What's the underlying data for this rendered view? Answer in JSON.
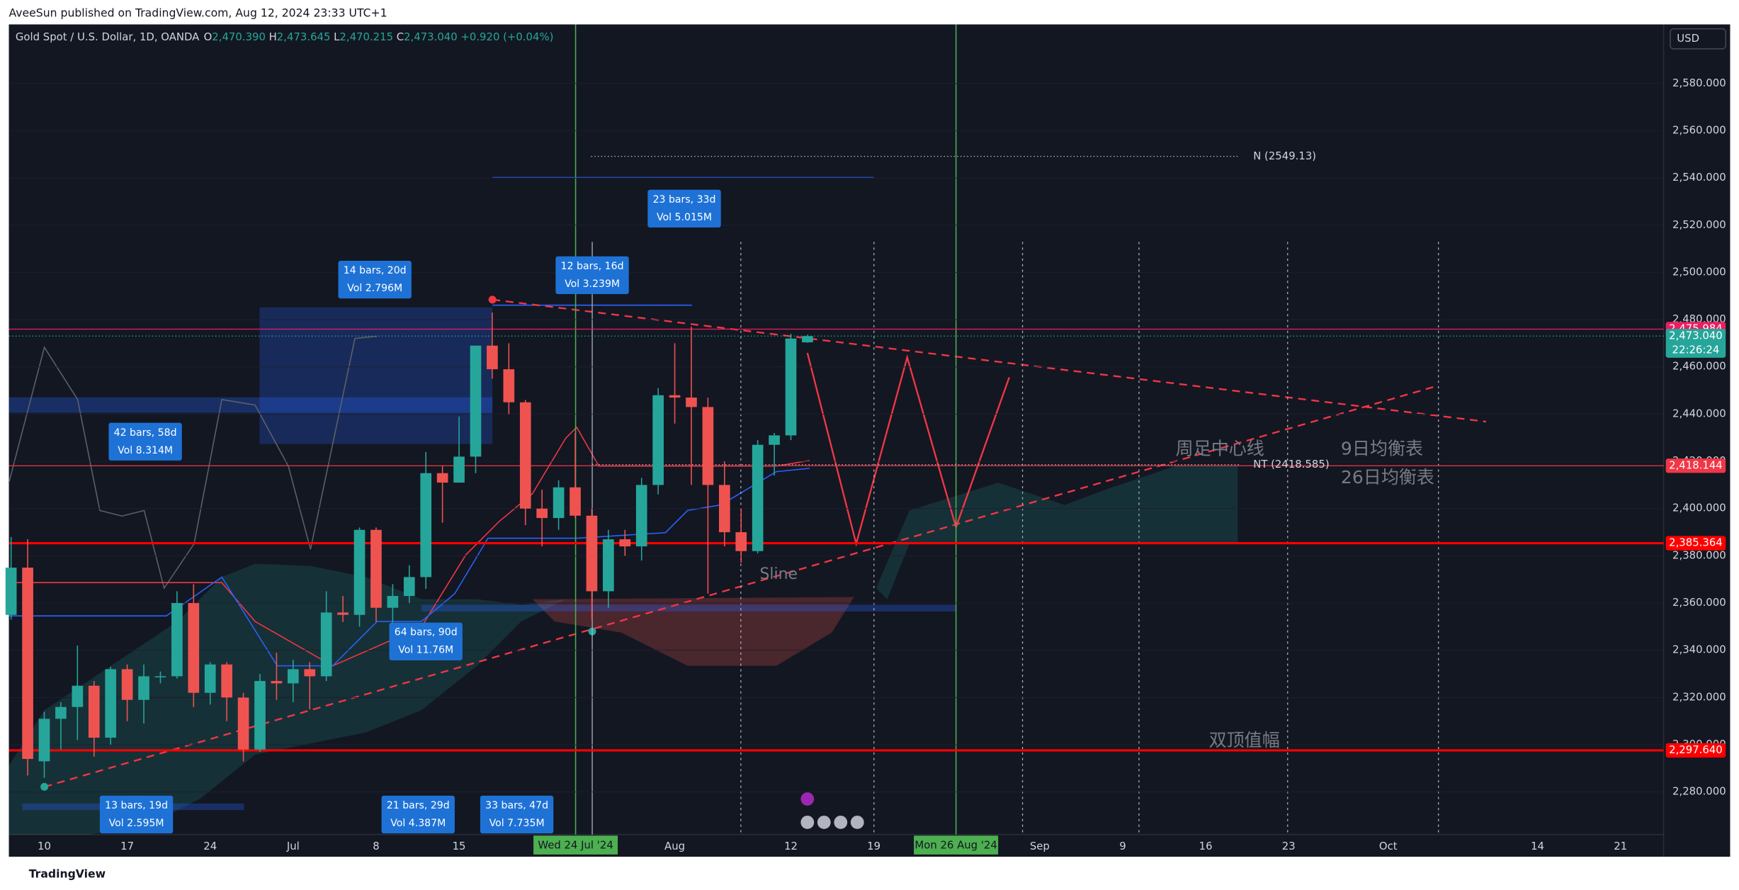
{
  "header": {
    "publisher": "AveeSun published on TradingView.com, Aug 12, 2024 23:33 UTC+1",
    "footer_logo": "TradingView"
  },
  "chart_data": {
    "type": "candlestick",
    "title": "Gold Spot / U.S. Dollar, 1D, OANDA",
    "legend": [
      {
        "key": "O",
        "text": "2,470.390"
      },
      {
        "key": "H",
        "text": "2,473.645"
      },
      {
        "key": "L",
        "text": "2,470.215"
      },
      {
        "key": "C",
        "text": "2,473.040"
      }
    ],
    "change": "+0.920 (+0.04%)",
    "currency": "USD",
    "categories": [
      null,
      null,
      "10",
      null,
      null,
      null,
      null,
      "17",
      null,
      null,
      null,
      null,
      "24",
      null,
      null,
      null,
      null,
      "Jul",
      null,
      null,
      null,
      null,
      "8",
      null,
      null,
      null,
      null,
      "15",
      null,
      null,
      null,
      null,
      null,
      null,
      null,
      null,
      null,
      null,
      null,
      null,
      "Aug",
      null,
      null,
      null,
      null,
      null,
      null,
      "12",
      null,
      null,
      null,
      null,
      "19",
      null,
      null,
      null,
      null,
      null,
      null,
      null,
      null,
      null,
      "Sep",
      null,
      null,
      null,
      null,
      "9",
      null,
      null,
      null,
      null,
      "16",
      null,
      null,
      null,
      null,
      "23",
      null,
      null,
      null,
      null,
      null,
      "Oct",
      null,
      null,
      null,
      null,
      null,
      null,
      null,
      null,
      "14",
      null,
      null,
      null,
      null,
      "21",
      null,
      null
    ],
    "series": [
      {
        "up_color": "#26a69a",
        "down_color": "#ef5350",
        "values": [
          [
            2355,
            2388,
            2353,
            2375
          ],
          [
            2375,
            2387,
            2287,
            2294
          ],
          [
            2293,
            2314,
            2286,
            2311
          ],
          [
            2311,
            2318,
            2298,
            2316
          ],
          [
            2316,
            2342,
            2302,
            2325
          ],
          [
            2325,
            2327,
            2295,
            2303
          ],
          [
            2303,
            2333,
            2300,
            2332
          ],
          [
            2332,
            2334,
            2310,
            2319
          ],
          [
            2319,
            2334,
            2309,
            2329
          ],
          [
            2329,
            2331,
            2326,
            2329
          ],
          [
            2329,
            2365,
            2328,
            2360
          ],
          [
            2360,
            2368,
            2316,
            2322
          ],
          [
            2322,
            2335,
            2317,
            2334
          ],
          [
            2334,
            2335,
            2310,
            2320
          ],
          [
            2320,
            2322,
            2293,
            2298
          ],
          [
            2298,
            2330,
            2297,
            2327
          ],
          [
            2327,
            2339,
            2319,
            2326
          ],
          [
            2326,
            2336,
            2318,
            2332
          ],
          [
            2332,
            2335,
            2315,
            2329
          ],
          [
            2329,
            2365,
            2327,
            2356
          ],
          [
            2356,
            2363,
            2352,
            2355
          ],
          [
            2355,
            2392,
            2350,
            2391
          ],
          [
            2391,
            2392,
            2352,
            2358
          ],
          [
            2358,
            2368,
            2351,
            2363
          ],
          [
            2363,
            2376,
            2360,
            2371
          ],
          [
            2371,
            2424,
            2366,
            2415
          ],
          [
            2415,
            2418,
            2394,
            2411
          ],
          [
            2411,
            2439,
            2411,
            2422
          ],
          [
            2422,
            2469,
            2415,
            2469
          ],
          [
            2469,
            2483,
            2455,
            2459
          ],
          [
            2459,
            2470,
            2440,
            2445
          ],
          [
            2445,
            2446,
            2393,
            2400
          ],
          [
            2400,
            2408,
            2384,
            2396
          ],
          [
            2396,
            2412,
            2391,
            2409
          ],
          [
            2409,
            2432,
            2396,
            2397
          ],
          [
            2397,
            2400,
            2353,
            2365
          ],
          [
            2365,
            2391,
            2358,
            2387
          ],
          [
            2387,
            2391,
            2380,
            2384
          ],
          [
            2384,
            2413,
            2378,
            2410
          ],
          [
            2410,
            2451,
            2406,
            2448
          ],
          [
            2448,
            2470,
            2436,
            2447
          ],
          [
            2447,
            2477,
            2410,
            2443
          ],
          [
            2443,
            2447,
            2364,
            2410
          ],
          [
            2410,
            2420,
            2384,
            2390
          ],
          [
            2390,
            2400,
            2377,
            2382
          ],
          [
            2382,
            2429,
            2381,
            2427
          ],
          [
            2427,
            2432,
            2414,
            2431
          ],
          [
            2431,
            2474,
            2429,
            2472
          ],
          [
            2470.39,
            2473.645,
            2470.215,
            2473.04
          ],
          null,
          null,
          null,
          null,
          null,
          null,
          null,
          null,
          null,
          null,
          null,
          null,
          null,
          null,
          null,
          null,
          null,
          null,
          null,
          null,
          null,
          null,
          null,
          null,
          null,
          null,
          null,
          null,
          null,
          null,
          null,
          null,
          null,
          null,
          null,
          null,
          null,
          null,
          null,
          null,
          null,
          null,
          null,
          null,
          null,
          null,
          null,
          null,
          null,
          null,
          null
        ]
      }
    ],
    "ylim": [
      2262,
      2605
    ],
    "yticks": [
      {
        "value": 2280,
        "label": "2,280.000"
      },
      {
        "value": 2300,
        "label": "2,300.000"
      },
      {
        "value": 2320,
        "label": "2,320.000"
      },
      {
        "value": 2340,
        "label": "2,340.000"
      },
      {
        "value": 2360,
        "label": "2,360.000"
      },
      {
        "value": 2380,
        "label": "2,380.000"
      },
      {
        "value": 2400,
        "label": "2,400.000"
      },
      {
        "value": 2420,
        "label": "2,420.000"
      },
      {
        "value": 2440,
        "label": "2,440.000"
      },
      {
        "value": 2460,
        "label": "2,460.000"
      },
      {
        "value": 2480,
        "label": "2,480.000"
      },
      {
        "value": 2500,
        "label": "2,500.000"
      },
      {
        "value": 2520,
        "label": "2,520.000"
      },
      {
        "value": 2540,
        "label": "2,540.000"
      },
      {
        "value": 2560,
        "label": "2,560.000"
      },
      {
        "value": 2580,
        "label": "2,580.000"
      }
    ],
    "price_labels": [
      {
        "value": 2475.984,
        "label": "2,475.984",
        "color": "#e91e63"
      },
      {
        "value": 2473.04,
        "label": "2,473.040",
        "color": "#26a69a",
        "countdown": "22:26:24"
      },
      {
        "value": 2418.144,
        "label": "2,418.144",
        "color": "#f23645"
      },
      {
        "value": 2385.364,
        "label": "2,385.364",
        "color": "#ff0000"
      },
      {
        "value": 2297.64,
        "label": "2,297.640",
        "color": "#ff0000"
      }
    ],
    "levels": [
      {
        "value": 2549.13,
        "label": "N (2549.13)"
      },
      {
        "value": 2418.585,
        "label": "NT (2418.585)"
      }
    ],
    "date_markers": [
      "Wed 24 Jul '24",
      "Mon 26 Aug '24"
    ],
    "annotations": [
      "周足中心线",
      "9日均衡表",
      "26日均衡表",
      "Sline",
      "双顶值幅"
    ],
    "measures": [
      {
        "bars": "14 bars, 20d",
        "vol": "Vol 2.796M"
      },
      {
        "bars": "12 bars, 16d",
        "vol": "Vol 3.239M"
      },
      {
        "bars": "23 bars, 33d",
        "vol": "Vol 5.015M"
      },
      {
        "bars": "42 bars, 58d",
        "vol": "Vol 8.314M"
      },
      {
        "bars": "64 bars, 90d",
        "vol": "Vol 11.76M"
      },
      {
        "bars": "13 bars, 19d",
        "vol": "Vol 2.595M"
      },
      {
        "bars": "21 bars, 29d",
        "vol": "Vol 4.387M"
      },
      {
        "bars": "33 bars, 47d",
        "vol": "Vol 7.735M"
      }
    ]
  }
}
